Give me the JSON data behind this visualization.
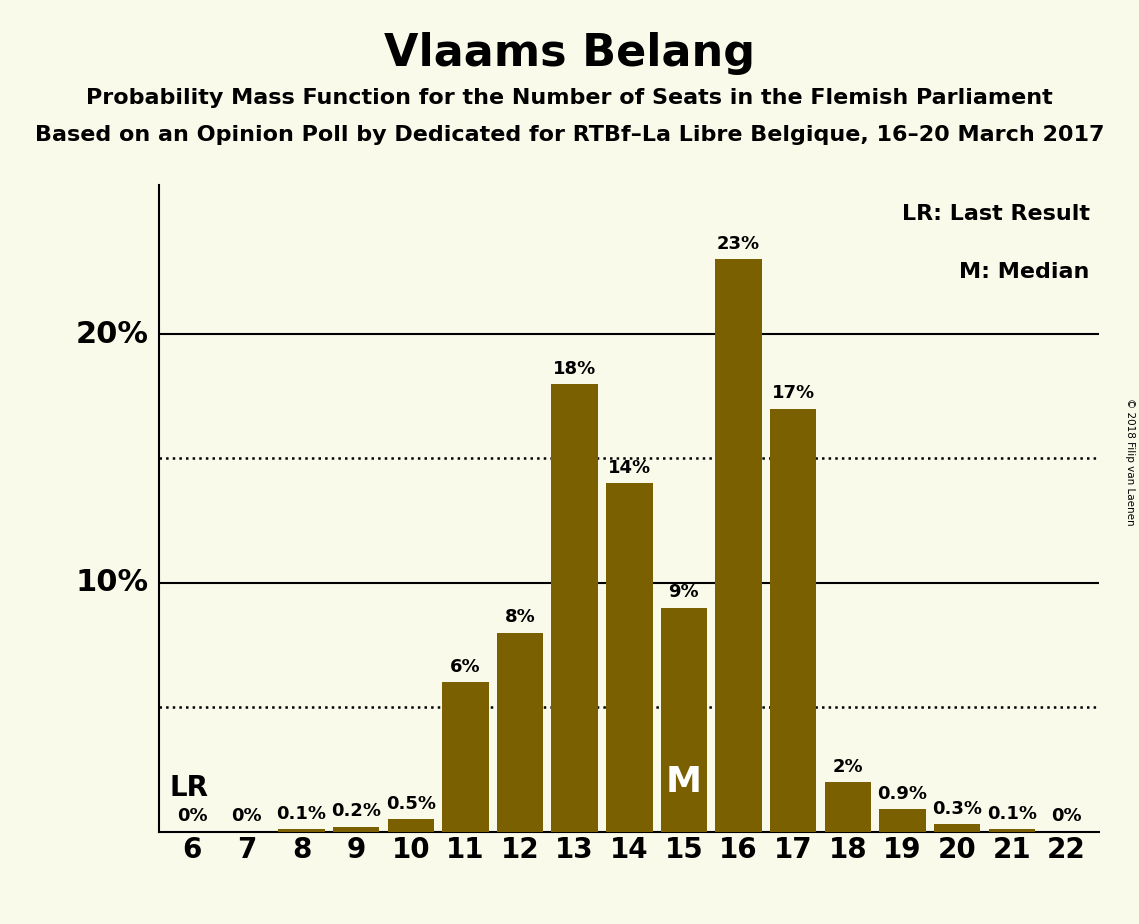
{
  "title": "Vlaams Belang",
  "subtitle1": "Probability Mass Function for the Number of Seats in the Flemish Parliament",
  "subtitle2": "Based on an Opinion Poll by Dedicated for RTBf–La Libre Belgique, 16–20 March 2017",
  "copyright": "© 2018 Filip van Laenen",
  "categories": [
    6,
    7,
    8,
    9,
    10,
    11,
    12,
    13,
    14,
    15,
    16,
    17,
    18,
    19,
    20,
    21,
    22
  ],
  "values": [
    0.0,
    0.0,
    0.1,
    0.2,
    0.5,
    6.0,
    8.0,
    18.0,
    14.0,
    9.0,
    23.0,
    17.0,
    2.0,
    0.9,
    0.3,
    0.1,
    0.0
  ],
  "labels": [
    "0%",
    "0%",
    "0.1%",
    "0.2%",
    "0.5%",
    "6%",
    "8%",
    "18%",
    "14%",
    "9%",
    "23%",
    "17%",
    "2%",
    "0.9%",
    "0.3%",
    "0.1%",
    "0%"
  ],
  "bar_color": "#7a6000",
  "background_color": "#fafaeb",
  "text_color": "#000000",
  "dotted_lines": [
    5.0,
    15.0
  ],
  "solid_lines": [
    10.0,
    20.0
  ],
  "ylim": [
    0,
    26
  ],
  "lr_seat": 6,
  "median_seat": 15,
  "legend_lr": "LR: Last Result",
  "legend_m": "M: Median",
  "title_fontsize": 32,
  "subtitle_fontsize": 16,
  "label_fontsize": 13,
  "tick_fontsize": 20,
  "ytick_fontsize": 22,
  "ytick_labels": [
    "10%",
    "20%"
  ],
  "ytick_values": [
    10,
    20
  ]
}
